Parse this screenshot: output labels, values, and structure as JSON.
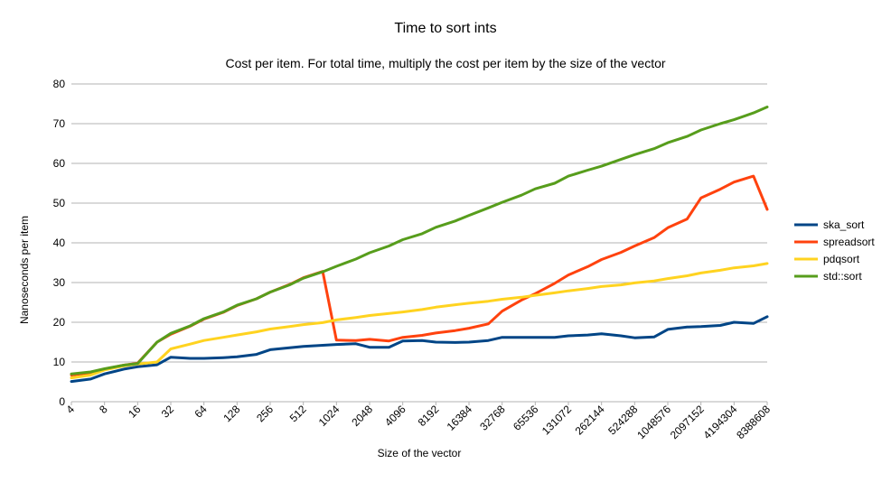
{
  "chart_data": {
    "type": "line",
    "title": "Time to sort ints",
    "subtitle": "Cost per item. For total time, multiply the cost per item by the size of the vector",
    "xlabel": "Size of the vector",
    "ylabel": "Nanoseconds per item",
    "x_scale": "log2",
    "ylim": [
      0,
      80
    ],
    "yticks": [
      0,
      10,
      20,
      30,
      40,
      50,
      60,
      70,
      80
    ],
    "grid": "horizontal",
    "legend_position": "right",
    "x": [
      4,
      6,
      8,
      12,
      16,
      24,
      32,
      48,
      64,
      96,
      128,
      192,
      256,
      384,
      512,
      768,
      1024,
      1536,
      2048,
      3072,
      4096,
      6144,
      8192,
      12288,
      16384,
      24576,
      32768,
      49152,
      65536,
      98304,
      131072,
      196608,
      262144,
      393216,
      524288,
      786432,
      1048576,
      1572864,
      2097152,
      3145728,
      4194304,
      6291456,
      8388608
    ],
    "x_tick_labels": [
      "4",
      "8",
      "16",
      "32",
      "64",
      "128",
      "256",
      "512",
      "1024",
      "2048",
      "4096",
      "8192",
      "16384",
      "32768",
      "65536",
      "131072",
      "262144",
      "524288",
      "1048576",
      "2097152",
      "4194304",
      "8388608"
    ],
    "series": [
      {
        "name": "ska_sort",
        "color": "#004586",
        "values": [
          5.1,
          5.7,
          7.0,
          8.2,
          8.8,
          9.3,
          11.2,
          10.9,
          10.9,
          11.1,
          11.3,
          11.9,
          13.1,
          13.6,
          13.9,
          14.2,
          14.4,
          14.6,
          13.7,
          13.7,
          15.3,
          15.4,
          15.0,
          14.9,
          15.0,
          15.4,
          16.2,
          16.2,
          16.2,
          16.2,
          16.6,
          16.8,
          17.1,
          16.6,
          16.1,
          16.3,
          18.2,
          18.8,
          18.9,
          19.2,
          20.0,
          19.7,
          21.4
        ]
      },
      {
        "name": "spreadsort",
        "color": "#ff420e",
        "values": [
          6.7,
          7.3,
          8.2,
          9.2,
          9.7,
          15.0,
          17.0,
          19.0,
          20.8,
          22.5,
          24.2,
          25.9,
          27.6,
          29.5,
          31.2,
          32.8,
          15.5,
          15.4,
          15.7,
          15.3,
          16.2,
          16.7,
          17.3,
          17.9,
          18.5,
          19.6,
          22.8,
          25.6,
          27.2,
          29.8,
          31.9,
          34.0,
          35.8,
          37.6,
          39.2,
          41.3,
          43.8,
          46.0,
          51.3,
          53.5,
          55.3,
          56.8,
          48.4
        ]
      },
      {
        "name": "pdqsort",
        "color": "#ffd320",
        "values": [
          6.0,
          6.7,
          8.0,
          9.0,
          9.5,
          10.0,
          13.3,
          14.5,
          15.4,
          16.2,
          16.8,
          17.6,
          18.3,
          18.9,
          19.4,
          19.9,
          20.6,
          21.2,
          21.7,
          22.2,
          22.6,
          23.2,
          23.8,
          24.4,
          24.8,
          25.3,
          25.8,
          26.3,
          26.8,
          27.4,
          27.9,
          28.5,
          29.0,
          29.4,
          29.9,
          30.4,
          31.0,
          31.7,
          32.4,
          33.1,
          33.7,
          34.2,
          34.8
        ]
      },
      {
        "name": "std::sort",
        "color": "#579d1c",
        "values": [
          7.0,
          7.5,
          8.3,
          9.2,
          9.6,
          15.0,
          17.2,
          19.1,
          20.9,
          22.6,
          24.3,
          25.9,
          27.6,
          29.4,
          31.1,
          32.7,
          34.1,
          35.9,
          37.5,
          39.2,
          40.8,
          42.3,
          43.9,
          45.5,
          46.9,
          48.8,
          50.2,
          52.0,
          53.6,
          55.0,
          56.8,
          58.3,
          59.3,
          61.0,
          62.2,
          63.7,
          65.2,
          66.8,
          68.4,
          70.0,
          71.0,
          72.7,
          74.2
        ]
      }
    ]
  }
}
